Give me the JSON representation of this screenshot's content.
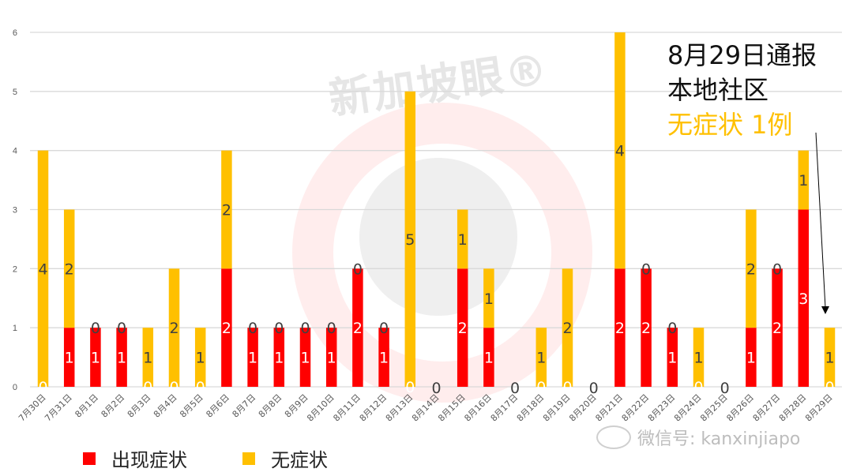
{
  "chart_data": {
    "type": "bar",
    "stacked": true,
    "title": "",
    "xlabel": "",
    "ylabel": "",
    "ylim": [
      0,
      6
    ],
    "yticks": [
      0,
      1,
      2,
      3,
      4,
      5,
      6
    ],
    "grid": true,
    "legend_position": "bottom-left",
    "categories": [
      "7月30日",
      "7月31日",
      "8月1日",
      "8月2日",
      "8月3日",
      "8月4日",
      "8月5日",
      "8月6日",
      "8月7日",
      "8月8日",
      "8月9日",
      "8月10日",
      "8月11日",
      "8月12日",
      "8月13日",
      "8月14日",
      "8月15日",
      "8月16日",
      "8月17日",
      "8月18日",
      "8月19日",
      "8月20日",
      "8月21日",
      "8月22日",
      "8月23日",
      "8月24日",
      "8月25日",
      "8月26日",
      "8月27日",
      "8月28日",
      "8月29日"
    ],
    "series": [
      {
        "name": "出现症状",
        "color": "#FF0000",
        "values": [
          0,
          1,
          1,
          1,
          0,
          0,
          0,
          2,
          1,
          1,
          1,
          1,
          2,
          1,
          0,
          0,
          2,
          1,
          0,
          0,
          0,
          0,
          2,
          2,
          1,
          0,
          0,
          1,
          2,
          3,
          0
        ]
      },
      {
        "name": "无症状",
        "color": "#FFC000",
        "values": [
          4,
          2,
          0,
          0,
          1,
          2,
          1,
          2,
          0,
          0,
          0,
          0,
          0,
          0,
          5,
          0,
          1,
          1,
          0,
          1,
          2,
          0,
          4,
          0,
          0,
          1,
          0,
          2,
          0,
          1,
          1
        ]
      }
    ],
    "annotations": [
      {
        "lines": [
          "8月29日通报",
          "本地社区",
          "无症状 1例"
        ],
        "arrow_to": "8月29日"
      }
    ]
  },
  "annotation": {
    "line1": "8月29日通报",
    "line2": "本地社区",
    "line3": "无症状 1例"
  },
  "legend": {
    "items": [
      {
        "label": "出现症状",
        "color": "#FF0000"
      },
      {
        "label": "无症状",
        "color": "#FFC000"
      }
    ]
  },
  "watermarks": {
    "brand": "新加坡眼®",
    "wechat": "微信号: kanxinjiapo"
  }
}
